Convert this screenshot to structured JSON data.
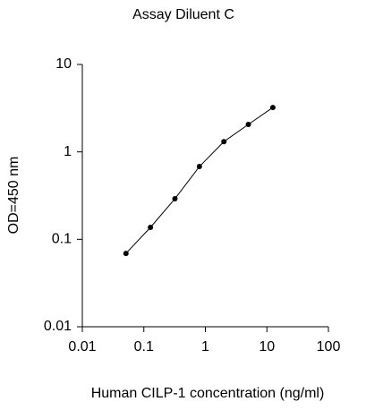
{
  "chart_data": {
    "type": "line",
    "title": "Assay Diluent C",
    "xlabel": "Human CILP-1 concentration (ng/ml)",
    "ylabel": "OD=450 nm",
    "x": [
      0.0512,
      0.128,
      0.32,
      0.8,
      2,
      5,
      12.5
    ],
    "series": [
      {
        "color": "#000000",
        "values": [
          0.069,
          0.137,
          0.291,
          0.68,
          1.31,
          2.06,
          3.22
        ]
      }
    ],
    "xscale": "log",
    "yscale": "log",
    "xlim": [
      0.01,
      100
    ],
    "xticks": [
      0.01,
      0.1,
      1,
      10,
      100
    ],
    "ylim": [
      0.01,
      10
    ],
    "yticks": [
      0.01,
      0.1,
      1,
      10
    ],
    "grid": false,
    "markers": true
  }
}
